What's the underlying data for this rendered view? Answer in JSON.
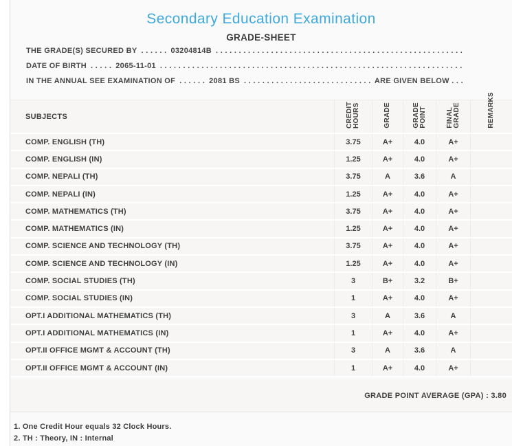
{
  "title": "Secondary Education Examination",
  "subtitle": "GRADE-SHEET",
  "info": {
    "filler_dots": ". . . . . . . . . . . . . . . . . . . . . . . . . . . . . . . . . . . . . . . . . . . . . . . . . . . . . . . . . . . . . . . . . . . . . . . . . . . . . . . . . . . . . . . . . . . . . . . . . . . .",
    "lines": [
      {
        "label": "THE GRADE(S) SECURED BY",
        "pre_dots": ". . . . . .",
        "value": "03204814B",
        "post": ""
      },
      {
        "label": "DATE OF BIRTH",
        "pre_dots": ". . . . .",
        "value": "2065-11-01",
        "post": ""
      },
      {
        "label": "IN THE ANNUAL SEE EXAMINATION OF",
        "pre_dots": ". . . . . .",
        "value": "2081 BS",
        "post": "ARE GIVEN BELOW . . ."
      }
    ]
  },
  "table": {
    "subjects_header": "SUBJECTS",
    "columns": [
      {
        "label": "CREDIT HOURS",
        "line1": "CREDIT",
        "line2": "HOURS"
      },
      {
        "label": "GRADE",
        "line1": "GRADE",
        "line2": ""
      },
      {
        "label": "GRADE POINT",
        "line1": "GRADE",
        "line2": "POINT"
      },
      {
        "label": "FINAL GRADE",
        "line1": "FINAL",
        "line2": "GRADE"
      },
      {
        "label": "REMARKS",
        "line1": "REMARKS",
        "line2": ""
      }
    ],
    "rows": [
      {
        "subject": "COMP. ENGLISH (TH)",
        "credit": "3.75",
        "grade": "A+",
        "point": "4.0",
        "final": "A+",
        "remarks": ""
      },
      {
        "subject": "COMP. ENGLISH (IN)",
        "credit": "1.25",
        "grade": "A+",
        "point": "4.0",
        "final": "A+",
        "remarks": ""
      },
      {
        "subject": "COMP. NEPALI (TH)",
        "credit": "3.75",
        "grade": "A",
        "point": "3.6",
        "final": "A",
        "remarks": ""
      },
      {
        "subject": "COMP. NEPALI (IN)",
        "credit": "1.25",
        "grade": "A+",
        "point": "4.0",
        "final": "A+",
        "remarks": ""
      },
      {
        "subject": "COMP. MATHEMATICS (TH)",
        "credit": "3.75",
        "grade": "A+",
        "point": "4.0",
        "final": "A+",
        "remarks": ""
      },
      {
        "subject": "COMP. MATHEMATICS (IN)",
        "credit": "1.25",
        "grade": "A+",
        "point": "4.0",
        "final": "A+",
        "remarks": ""
      },
      {
        "subject": "COMP. SCIENCE AND TECHNOLOGY (TH)",
        "credit": "3.75",
        "grade": "A+",
        "point": "4.0",
        "final": "A+",
        "remarks": ""
      },
      {
        "subject": "COMP. SCIENCE AND TECHNOLOGY (IN)",
        "credit": "1.25",
        "grade": "A+",
        "point": "4.0",
        "final": "A+",
        "remarks": ""
      },
      {
        "subject": "COMP. SOCIAL STUDIES (TH)",
        "credit": "3",
        "grade": "B+",
        "point": "3.2",
        "final": "B+",
        "remarks": ""
      },
      {
        "subject": "COMP. SOCIAL STUDIES (IN)",
        "credit": "1",
        "grade": "A+",
        "point": "4.0",
        "final": "A+",
        "remarks": ""
      },
      {
        "subject": "OPT.I ADDITIONAL MATHEMATICS (TH)",
        "credit": "3",
        "grade": "A",
        "point": "3.6",
        "final": "A",
        "remarks": ""
      },
      {
        "subject": "OPT.I ADDITIONAL MATHEMATICS (IN)",
        "credit": "1",
        "grade": "A+",
        "point": "4.0",
        "final": "A+",
        "remarks": ""
      },
      {
        "subject": "OPT.II OFFICE MGMT & ACCOUNT (TH)",
        "credit": "3",
        "grade": "A",
        "point": "3.6",
        "final": "A",
        "remarks": ""
      },
      {
        "subject": "OPT.II OFFICE MGMT & ACCOUNT (IN)",
        "credit": "1",
        "grade": "A+",
        "point": "4.0",
        "final": "A+",
        "remarks": ""
      }
    ]
  },
  "summary": {
    "gpa_label": "GRADE POINT AVERAGE (GPA) : 3.80"
  },
  "notes": [
    "1. One Credit Hour equals 32 Clock Hours.",
    "2. TH : Theory, IN : Internal"
  ],
  "colors": {
    "title_accent": "#3fa9dc",
    "text": "#3f3f3f",
    "band_bg": "#f7f6f5",
    "page_bg": "#fbfafa",
    "separator": "#ffffff",
    "column_line": "#eceae8"
  }
}
